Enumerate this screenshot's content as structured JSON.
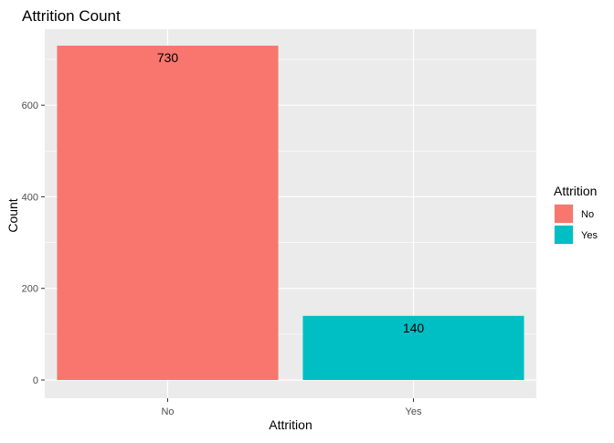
{
  "chart_data": {
    "type": "bar",
    "title": "Attrition Count",
    "xlabel": "Attrition",
    "ylabel": "Count",
    "categories": [
      "No",
      "Yes"
    ],
    "values": [
      730,
      140
    ],
    "data_labels": [
      "730",
      "140"
    ],
    "colors": [
      "#F8766D",
      "#00BFC4"
    ],
    "ylim": [
      0,
      767
    ],
    "yticks": [
      0,
      200,
      400,
      600
    ],
    "ytick_labels": [
      "0",
      "200",
      "400",
      "600"
    ],
    "grid": true,
    "panel_background": "#EBEBEB",
    "grid_color": "#FFFFFF",
    "legend": {
      "title": "Attrition",
      "position": "right",
      "items": [
        {
          "label": "No",
          "color": "#F8766D"
        },
        {
          "label": "Yes",
          "color": "#00BFC4"
        }
      ]
    }
  }
}
